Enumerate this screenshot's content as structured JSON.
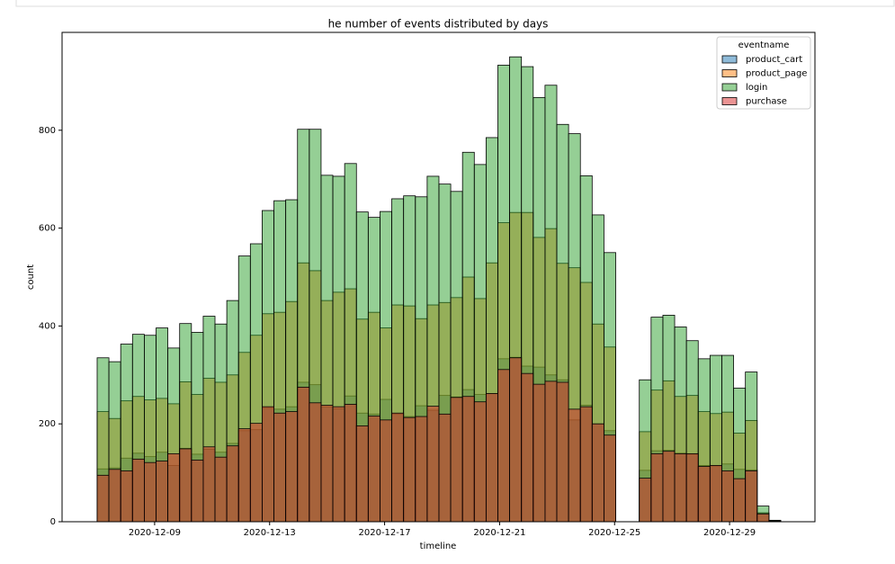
{
  "chart_data": {
    "type": "histogram",
    "title": "he number of events distributed by days",
    "xlabel": "timeline",
    "ylabel": "count",
    "legend_title": "eventname",
    "legend": "upper right",
    "bins": [
      7,
      7.41,
      7.82,
      8.23,
      8.64,
      9.05,
      9.46,
      9.87,
      10.28,
      10.69,
      11.1,
      11.51,
      11.92,
      12.33,
      12.74,
      13.15,
      13.56,
      13.97,
      14.38,
      14.79,
      15.2,
      15.61,
      16.02,
      16.43,
      16.84,
      17.25,
      17.66,
      18.07,
      18.48,
      18.89,
      19.3,
      19.71,
      20.12,
      20.53,
      20.94,
      21.35,
      21.76,
      22.17,
      22.58,
      22.99,
      23.4,
      23.81,
      24.22,
      24.63,
      25.04,
      25.45,
      25.86,
      26.27,
      26.68,
      27.09,
      27.5,
      27.91,
      28.32,
      28.73,
      29.14,
      29.55,
      29.96,
      30.37,
      30.78
    ],
    "series": [
      {
        "name": "product_cart",
        "color": "#1f77b4",
        "values": [
          108,
          110,
          130,
          140,
          133,
          142,
          115,
          150,
          138,
          148,
          142,
          160,
          186,
          188,
          232,
          230,
          235,
          285,
          280,
          235,
          231,
          257,
          222,
          220,
          250,
          220,
          215,
          237,
          228,
          258,
          255,
          270,
          260,
          262,
          333,
          336,
          318,
          316,
          300,
          290,
          208,
          238,
          200,
          186,
          0,
          0,
          105,
          145,
          146,
          140,
          138,
          115,
          114,
          118,
          107,
          106,
          18,
          2
        ]
      },
      {
        "name": "product_page",
        "color": "#ff7f0e",
        "values": [
          225,
          211,
          247,
          256,
          249,
          252,
          241,
          286,
          260,
          293,
          285,
          300,
          346,
          381,
          425,
          428,
          450,
          529,
          513,
          452,
          469,
          476,
          414,
          428,
          396,
          443,
          441,
          415,
          443,
          448,
          458,
          500,
          456,
          529,
          611,
          632,
          632,
          581,
          599,
          528,
          519,
          489,
          404,
          357,
          0,
          0,
          184,
          269,
          288,
          256,
          258,
          225,
          221,
          224,
          181,
          207,
          18,
          2
        ]
      },
      {
        "name": "login",
        "color": "#2ca02c",
        "values": [
          335,
          327,
          363,
          383,
          381,
          396,
          355,
          405,
          387,
          420,
          404,
          452,
          543,
          568,
          636,
          656,
          658,
          802,
          802,
          708,
          706,
          732,
          633,
          622,
          634,
          660,
          666,
          664,
          706,
          690,
          675,
          755,
          730,
          785,
          933,
          950,
          930,
          867,
          892,
          812,
          793,
          707,
          627,
          550,
          0,
          0,
          290,
          418,
          422,
          398,
          370,
          333,
          340,
          340,
          273,
          306,
          32,
          3
        ]
      },
      {
        "name": "purchase",
        "color": "#d62728",
        "values": [
          95,
          107,
          104,
          128,
          121,
          124,
          139,
          149,
          126,
          153,
          132,
          155,
          190,
          201,
          235,
          222,
          225,
          275,
          243,
          238,
          235,
          240,
          196,
          216,
          208,
          222,
          213,
          215,
          236,
          220,
          254,
          256,
          245,
          262,
          311,
          335,
          303,
          281,
          287,
          285,
          230,
          235,
          200,
          177,
          0,
          0,
          89,
          139,
          144,
          139,
          139,
          113,
          115,
          104,
          88,
          104,
          16,
          1
        ]
      }
    ],
    "xlim": [
      5.78,
      31.97
    ],
    "ylim": [
      0,
      1000
    ],
    "xticks": [
      {
        "value": 9,
        "label": "2020-12-09"
      },
      {
        "value": 13,
        "label": "2020-12-13"
      },
      {
        "value": 17,
        "label": "2020-12-17"
      },
      {
        "value": 21,
        "label": "2020-12-21"
      },
      {
        "value": 25,
        "label": "2020-12-25"
      },
      {
        "value": 29,
        "label": "2020-12-29"
      }
    ],
    "yticks": [
      0,
      200,
      400,
      600,
      800
    ]
  }
}
